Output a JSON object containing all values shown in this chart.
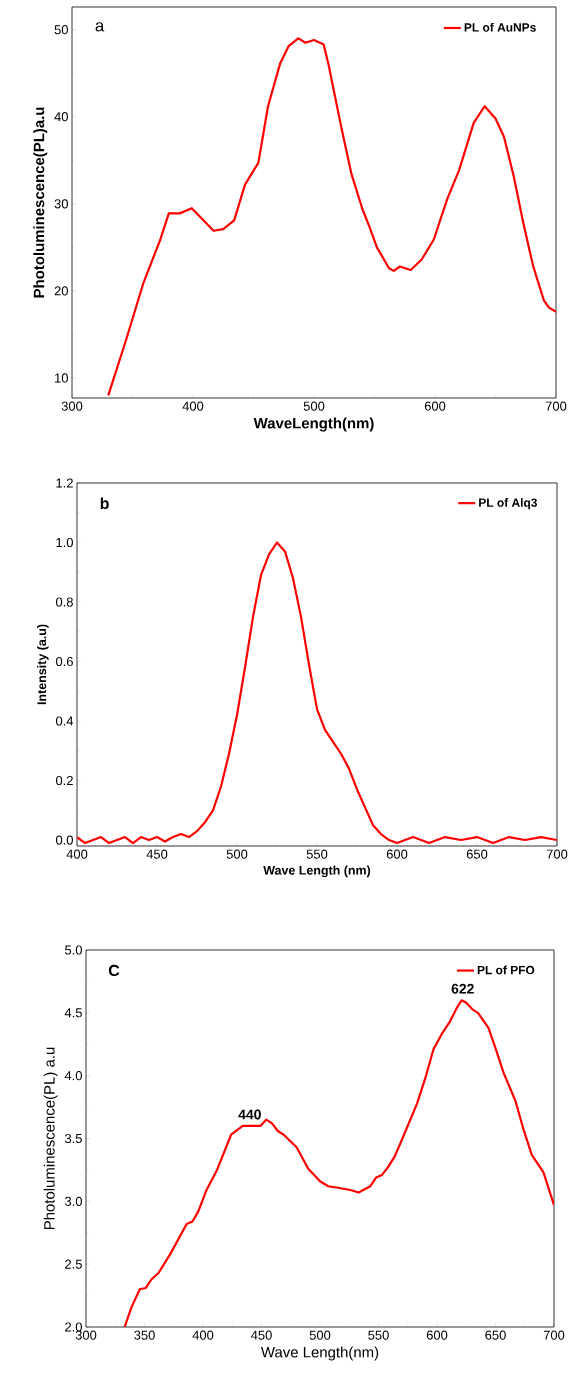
{
  "chart_data": [
    {
      "type": "line",
      "xlabel": "WaveLength(nm)",
      "ylabel": "Photoluminescence(PL)a.u",
      "annotations": [
        "a"
      ],
      "legend": "top right",
      "marker": "none",
      "xlim": [
        300,
        700
      ],
      "ylim": [
        7.7,
        52.6
      ],
      "xticks": [
        300,
        400,
        500,
        600,
        700
      ],
      "yticks": [
        10,
        20,
        30,
        40,
        50
      ],
      "series": [
        {
          "name": "PL of AuNPs",
          "color": "#ff0000",
          "x": [
            330,
            345,
            359,
            373,
            380,
            389,
            399,
            417,
            425,
            434,
            443,
            454,
            462,
            472,
            479,
            487,
            493,
            500,
            508,
            512,
            518,
            523,
            531,
            540,
            546,
            552,
            562,
            566,
            571,
            580,
            589,
            599,
            610,
            620,
            632,
            641,
            650,
            657,
            665,
            673,
            681,
            690,
            694,
            700
          ],
          "values": [
            8.0,
            14.5,
            20.9,
            25.9,
            28.9,
            28.9,
            29.5,
            26.9,
            27.1,
            28.1,
            32.2,
            34.7,
            41.2,
            46.1,
            48.1,
            49.0,
            48.5,
            48.8,
            48.3,
            46.0,
            41.9,
            38.5,
            33.4,
            29.4,
            27.3,
            25.0,
            22.6,
            22.3,
            22.8,
            22.4,
            23.6,
            25.9,
            30.5,
            33.9,
            39.3,
            41.2,
            39.8,
            37.7,
            33.2,
            27.8,
            22.9,
            18.9,
            18.1,
            17.6
          ]
        }
      ]
    },
    {
      "type": "line",
      "xlabel": "Wave Length (nm)",
      "ylabel": "Intensity (a.u)",
      "annotations": [
        "b"
      ],
      "legend": "top right",
      "marker": "none",
      "xlim": [
        400,
        700
      ],
      "ylim": [
        -0.02,
        1.2
      ],
      "xticks": [
        400,
        450,
        500,
        550,
        600,
        650,
        700
      ],
      "yticks": [
        {
          "value": 0,
          "label": "0.0"
        },
        {
          "value": 0.2,
          "label": "0.2"
        },
        {
          "value": 0.4,
          "label": "0.4"
        },
        {
          "value": 0.6,
          "label": "0.6"
        },
        {
          "value": 0.8,
          "label": "0.8"
        },
        {
          "value": 1.0,
          "label": "1.0"
        },
        {
          "value": 1.2,
          "label": "1.2"
        }
      ],
      "series": [
        {
          "name": "PL of Alq3",
          "color": "#ff0000",
          "x": [
            400,
            405,
            410,
            415,
            420,
            425,
            430,
            435,
            440,
            445,
            450,
            455,
            460,
            465,
            470,
            475,
            480,
            485,
            490,
            495,
            500,
            505,
            510,
            515,
            520,
            525,
            530,
            535,
            540,
            545,
            550,
            555,
            560,
            565,
            570,
            575,
            580,
            585,
            590,
            595,
            600,
            610,
            620,
            630,
            640,
            650,
            660,
            670,
            680,
            690,
            700
          ],
          "values": [
            0.01,
            -0.01,
            0.0,
            0.01,
            -0.01,
            0.0,
            0.01,
            -0.01,
            0.01,
            0.0,
            0.01,
            -0.005,
            0.01,
            0.02,
            0.01,
            0.03,
            0.06,
            0.1,
            0.18,
            0.29,
            0.42,
            0.58,
            0.75,
            0.89,
            0.96,
            1.0,
            0.97,
            0.88,
            0.75,
            0.59,
            0.44,
            0.37,
            0.33,
            0.29,
            0.24,
            0.17,
            0.11,
            0.05,
            0.02,
            0.0,
            -0.01,
            0.01,
            -0.01,
            0.01,
            0.0,
            0.01,
            -0.01,
            0.01,
            0.0,
            0.01,
            0.0
          ]
        }
      ]
    },
    {
      "type": "line",
      "xlabel": "Wave Length(nm)",
      "ylabel": "Photoluminescence(PL) a.u",
      "annotations": [
        "C",
        {
          "text": "440",
          "x": 440,
          "y": 3.6
        },
        {
          "text": "622",
          "x": 622,
          "y": 4.6
        }
      ],
      "legend": "top right",
      "marker": "none",
      "xlim": [
        300,
        700
      ],
      "ylim": [
        2.0,
        5.0
      ],
      "xticks": [
        300,
        350,
        400,
        450,
        500,
        550,
        600,
        650,
        700
      ],
      "yticks": [
        {
          "value": 2.0,
          "label": "2.0"
        },
        {
          "value": 2.5,
          "label": "2.5"
        },
        {
          "value": 3.0,
          "label": "3.0"
        },
        {
          "value": 3.5,
          "label": "3.5"
        },
        {
          "value": 4.0,
          "label": "4.0"
        },
        {
          "value": 4.5,
          "label": "4.5"
        },
        {
          "value": 5.0,
          "label": "5.0"
        }
      ],
      "series": [
        {
          "name": "PL of PFO",
          "color": "#ff0000",
          "x": [
            333,
            339,
            346,
            351,
            356,
            362,
            372,
            386,
            391,
            396,
            403,
            412,
            424,
            434,
            440,
            449,
            454,
            459,
            464,
            469,
            480,
            490,
            500,
            507,
            514,
            526,
            533,
            543,
            548,
            553,
            558,
            564,
            570,
            583,
            590,
            597,
            604,
            611,
            617,
            621,
            625,
            630,
            635,
            644,
            650,
            657,
            667,
            674,
            681,
            691,
            700
          ],
          "values": [
            2.0,
            2.16,
            2.3,
            2.31,
            2.38,
            2.43,
            2.58,
            2.82,
            2.84,
            2.92,
            3.09,
            3.25,
            3.53,
            3.6,
            3.6,
            3.6,
            3.65,
            3.62,
            3.56,
            3.53,
            3.43,
            3.26,
            3.16,
            3.12,
            3.11,
            3.09,
            3.07,
            3.12,
            3.19,
            3.21,
            3.27,
            3.36,
            3.49,
            3.78,
            3.98,
            4.21,
            4.33,
            4.43,
            4.54,
            4.6,
            4.58,
            4.53,
            4.5,
            4.38,
            4.22,
            4.02,
            3.8,
            3.57,
            3.37,
            3.23,
            2.97
          ]
        }
      ]
    }
  ]
}
